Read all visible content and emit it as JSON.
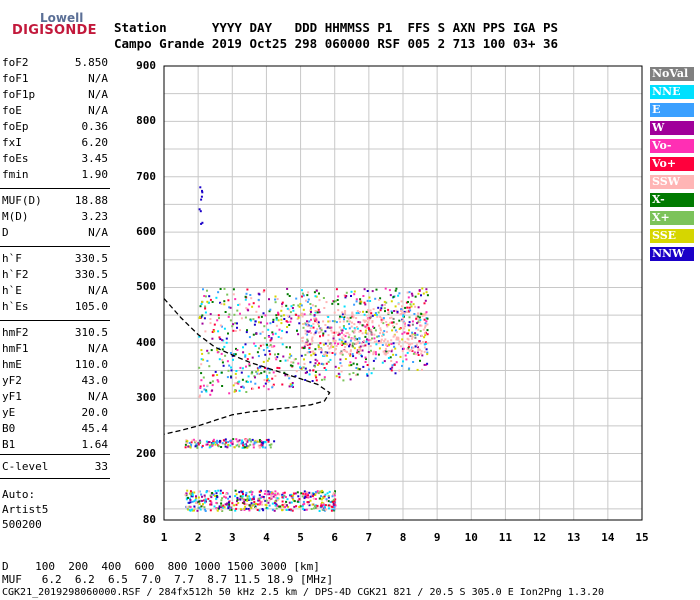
{
  "logo": {
    "line1": "Lowell",
    "line2": "DIGISONDE"
  },
  "header": {
    "row1": "Station      YYYY DAY   DDD HHMMSS P1  FFS S AXN PPS IGA PS",
    "row2": "Campo Grande 2019 Oct25 298 060000 RSF 005 2 713 100 03+ 36"
  },
  "params": [
    {
      "label": "foF2",
      "value": "5.850"
    },
    {
      "label": "foF1",
      "value": "N/A"
    },
    {
      "label": "foF1p",
      "value": "N/A"
    },
    {
      "label": "foE",
      "value": "N/A"
    },
    {
      "label": "foEp",
      "value": "0.36"
    },
    {
      "label": "fxI",
      "value": "6.20"
    },
    {
      "label": "foEs",
      "value": "3.45"
    },
    {
      "label": "fmin",
      "value": "1.90"
    },
    {
      "label": "MUF(D)",
      "value": "18.88"
    },
    {
      "label": "M(D)",
      "value": "3.23"
    },
    {
      "label": "D",
      "value": "N/A"
    },
    {
      "label": "h`F",
      "value": "330.5"
    },
    {
      "label": "h`F2",
      "value": "330.5"
    },
    {
      "label": "h`E",
      "value": "N/A"
    },
    {
      "label": "h`Es",
      "value": "105.0"
    },
    {
      "label": "hmF2",
      "value": "310.5"
    },
    {
      "label": "hmF1",
      "value": "N/A"
    },
    {
      "label": "hmE",
      "value": "110.0"
    },
    {
      "label": "yF2",
      "value": "43.0"
    },
    {
      "label": "yF1",
      "value": "N/A"
    },
    {
      "label": "yE",
      "value": "20.0"
    },
    {
      "label": "B0",
      "value": "45.4"
    },
    {
      "label": "B1",
      "value": "1.64"
    },
    {
      "label": "C-level",
      "value": "33"
    }
  ],
  "auto": {
    "line1": "Auto:",
    "line2": "Artist5",
    "line3": "500200"
  },
  "legend": [
    {
      "label": "NoVal",
      "color": "#808080",
      "text_color": "#ffffff"
    },
    {
      "label": "NNE",
      "color": "#00e0ff",
      "text_color": "#ffffff"
    },
    {
      "label": "E",
      "color": "#3aa0ff",
      "text_color": "#ffffff"
    },
    {
      "label": "W",
      "color": "#a0009a",
      "text_color": "#ffffff"
    },
    {
      "label": "Vo-",
      "color": "#ff2fb4",
      "text_color": "#ffffff"
    },
    {
      "label": "Vo+",
      "color": "#ff003c",
      "text_color": "#ffffff"
    },
    {
      "label": "SSW",
      "color": "#ffb5b5",
      "text_color": "#ffffff"
    },
    {
      "label": "X-",
      "color": "#007a00",
      "text_color": "#ffffff"
    },
    {
      "label": "X+",
      "color": "#7cc35a",
      "text_color": "#ffffff"
    },
    {
      "label": "SSE",
      "color": "#d6d600",
      "text_color": "#ffffff"
    },
    {
      "label": "NNW",
      "color": "#1a00c8",
      "text_color": "#ffffff"
    }
  ],
  "chart_data": {
    "type": "scatter",
    "xlim": [
      1,
      15
    ],
    "ylim": [
      80,
      900
    ],
    "x_ticks": [
      "1",
      "2",
      "3",
      "4",
      "5",
      "6",
      "7",
      "8",
      "9",
      "10",
      "11",
      "12",
      "13",
      "14",
      "15"
    ],
    "y_ticks": [
      "80",
      "200",
      "300",
      "400",
      "500",
      "600",
      "700",
      "800",
      "900"
    ],
    "grid": true,
    "profile": [
      [
        1.0,
        480
      ],
      [
        1.5,
        445
      ],
      [
        2.0,
        415
      ],
      [
        2.5,
        392
      ],
      [
        3.0,
        378
      ],
      [
        3.5,
        365
      ],
      [
        4.0,
        355
      ],
      [
        4.5,
        345
      ],
      [
        5.0,
        335
      ],
      [
        5.5,
        325
      ],
      [
        5.85,
        310
      ],
      [
        5.7,
        295
      ],
      [
        5.3,
        288
      ],
      [
        4.8,
        284
      ],
      [
        4.2,
        280
      ],
      [
        3.5,
        275
      ],
      [
        3.0,
        270
      ],
      [
        2.5,
        260
      ],
      [
        2.0,
        250
      ],
      [
        1.5,
        242
      ],
      [
        1.0,
        235
      ]
    ],
    "traces": [
      {
        "name": "F-layer",
        "xmin": 2.0,
        "xmax": 8.7,
        "ymin": 290,
        "ymax": 500,
        "count": 900
      },
      {
        "name": "F-layer-upper",
        "xmin": 5.0,
        "xmax": 8.7,
        "ymin": 380,
        "ymax": 460,
        "count": 350
      },
      {
        "name": "Es-layer",
        "xmin": 1.6,
        "xmax": 4.2,
        "ymin": 212,
        "ymax": 228,
        "count": 160
      },
      {
        "name": "E-region",
        "xmin": 1.6,
        "xmax": 6.0,
        "ymin": 98,
        "ymax": 135,
        "count": 500
      },
      {
        "name": "spread",
        "xmin": 2.0,
        "xmax": 2.1,
        "ymin": 615,
        "ymax": 690,
        "count": 9
      }
    ]
  },
  "footer": {
    "row1": "D    100  200  400  600  800 1000 1500 3000 [km]",
    "row2": "MUF   6.2  6.2  6.5  7.0  7.7  8.7 11.5 18.9 [MHz]",
    "row3": "CGK21_2019298060000.RSF / 284fx512h 50 kHz 2.5 km / DPS-4D CGK21 821 / 20.5 S 305.0 E Ion2Png 1.3.20"
  }
}
